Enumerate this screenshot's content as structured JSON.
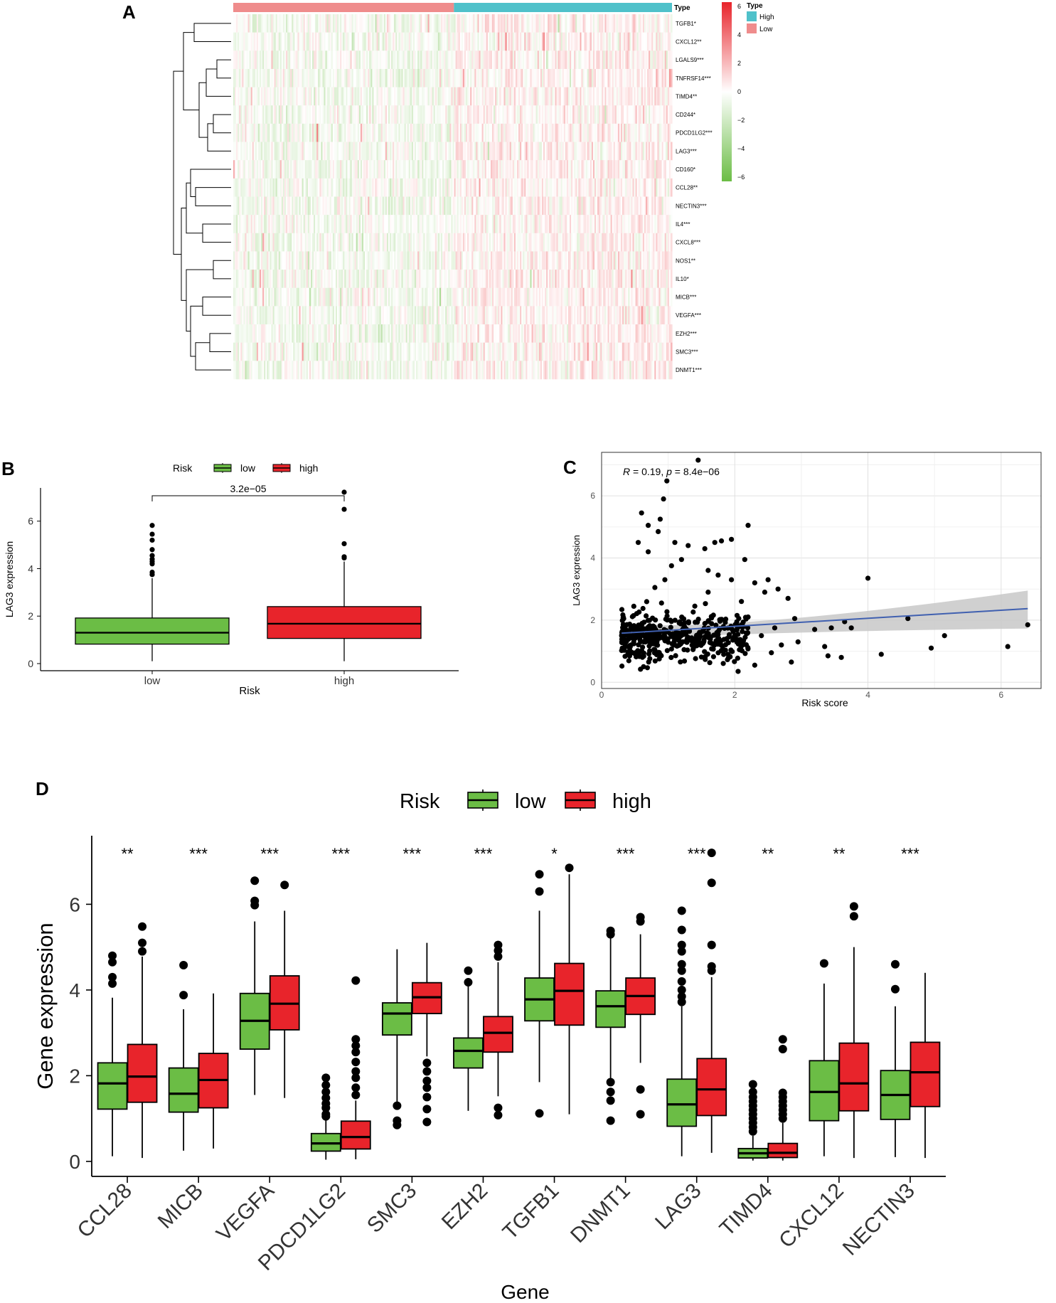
{
  "colors": {
    "low": "#6bbd45",
    "high": "#e8242b",
    "heat_pos": "#e8242b",
    "heat_neg": "#6bbd45",
    "type_high": "#4fc1ca",
    "type_low": "#ef8c8c",
    "fit": "#4060b0",
    "band": "#c8c8c8"
  },
  "chart_data": [
    {
      "panel": "A",
      "type": "heatmap",
      "title": "",
      "genes": [
        "TGFB1*",
        "CXCL12**",
        "LGALS9***",
        "TNFRSF14***",
        "TIMD4**",
        "CD244*",
        "PDCD1LG2***",
        "LAG3***",
        "CD160*",
        "CCL28**",
        "NECTIN3***",
        "IL4***",
        "CXCL8***",
        "NOS1**",
        "IL10*",
        "MICB***",
        "VEGFA***",
        "EZH2***",
        "SMC3***",
        "DNMT1***"
      ],
      "groups": [
        {
          "name": "Low",
          "fraction": 0.503
        },
        {
          "name": "High",
          "fraction": 0.497
        }
      ],
      "n_samples": 300,
      "legend": {
        "scale_title": "",
        "scale_ticks": [
          6,
          4,
          2,
          0,
          -2,
          -4,
          -6
        ],
        "type_title": "Type",
        "type_items": [
          {
            "label": "High",
            "color": "#4fc1ca"
          },
          {
            "label": "Low",
            "color": "#ef8c8c"
          }
        ]
      }
    },
    {
      "panel": "B",
      "type": "box",
      "legend_title": "Risk",
      "legend_items": [
        "low",
        "high"
      ],
      "categories": [
        "low",
        "high"
      ],
      "xlabel": "Risk",
      "ylabel": "LAG3 expression",
      "ylim": [
        -0.3,
        7.4
      ],
      "yticks": [
        0,
        2,
        4,
        6
      ],
      "pvalue": "3.2e−05",
      "boxes": [
        {
          "name": "low",
          "min": 0.1,
          "q1": 0.82,
          "median": 1.3,
          "q3": 1.92,
          "max": 3.6,
          "outliers": [
            3.75,
            3.85,
            4.2,
            4.3,
            4.4,
            4.55,
            4.8,
            5.2,
            5.45,
            5.82
          ]
        },
        {
          "name": "high",
          "min": 0.1,
          "q1": 1.06,
          "median": 1.68,
          "q3": 2.4,
          "max": 4.3,
          "outliers": [
            4.45,
            4.5,
            5.05,
            6.5,
            7.22
          ]
        }
      ]
    },
    {
      "panel": "C",
      "type": "scatter",
      "annotation_parts": [
        "R",
        " = 0.19, ",
        "p",
        " = 8.4e−06"
      ],
      "xlabel": "Risk score",
      "ylabel": "LAG3 expression",
      "xlim": [
        0,
        6.6
      ],
      "ylim": [
        -0.2,
        7.4
      ],
      "xticks": [
        0,
        2,
        4,
        6
      ],
      "yticks": [
        0,
        2,
        4,
        6
      ],
      "fit": {
        "x0": 0.3,
        "y0": 1.58,
        "x1": 6.4,
        "y1": 2.37
      },
      "band": {
        "upper_left": 1.85,
        "lower_left": 1.38,
        "upper_right": 2.95,
        "lower_right": 1.73
      },
      "points": [
        [
          1.45,
          7.15
        ],
        [
          0.98,
          6.48
        ],
        [
          0.93,
          5.9
        ],
        [
          0.6,
          5.45
        ],
        [
          0.88,
          5.25
        ],
        [
          0.7,
          5.05
        ],
        [
          2.2,
          5.05
        ],
        [
          0.85,
          4.85
        ],
        [
          1.95,
          4.6
        ],
        [
          1.7,
          4.5
        ],
        [
          1.8,
          4.55
        ],
        [
          1.3,
          4.4
        ],
        [
          1.1,
          4.5
        ],
        [
          1.55,
          4.3
        ],
        [
          0.55,
          4.5
        ],
        [
          0.7,
          4.2
        ],
        [
          4.0,
          3.35
        ],
        [
          2.5,
          3.3
        ],
        [
          1.6,
          3.6
        ],
        [
          1.75,
          3.45
        ],
        [
          2.3,
          3.2
        ],
        [
          2.45,
          2.9
        ],
        [
          2.65,
          3.0
        ],
        [
          2.8,
          2.7
        ],
        [
          2.9,
          2.05
        ],
        [
          2.2,
          2.1
        ],
        [
          2.6,
          1.75
        ],
        [
          3.2,
          1.7
        ],
        [
          3.45,
          1.75
        ],
        [
          3.65,
          1.95
        ],
        [
          3.75,
          1.75
        ],
        [
          3.35,
          1.15
        ],
        [
          3.4,
          0.85
        ],
        [
          3.6,
          0.8
        ],
        [
          4.2,
          0.9
        ],
        [
          4.6,
          2.05
        ],
        [
          4.95,
          1.1
        ],
        [
          5.15,
          1.5
        ],
        [
          6.1,
          1.15
        ],
        [
          6.4,
          1.85
        ],
        [
          2.05,
          0.35
        ],
        [
          2.3,
          0.55
        ],
        [
          2.55,
          0.95
        ],
        [
          2.85,
          0.65
        ],
        [
          2.7,
          1.2
        ],
        [
          2.4,
          1.5
        ],
        [
          2.95,
          1.3
        ],
        [
          1.9,
          0.9
        ],
        [
          2.0,
          1.5
        ],
        [
          2.1,
          2.6
        ],
        [
          1.95,
          3.3
        ],
        [
          2.15,
          3.95
        ],
        [
          1.2,
          3.95
        ],
        [
          1.05,
          3.75
        ],
        [
          0.95,
          3.3
        ],
        [
          0.8,
          3.05
        ],
        [
          0.9,
          2.55
        ],
        [
          1.4,
          2.45
        ],
        [
          1.6,
          2.9
        ]
      ],
      "cloud": {
        "seed": 7,
        "count": 440,
        "x_min": 0.3,
        "x_max": 2.2,
        "y_min": 0.05,
        "y_max": 3.4
      }
    },
    {
      "panel": "D",
      "type": "box",
      "legend_title": "Risk",
      "legend_items": [
        "low",
        "high"
      ],
      "xlabel": "Gene",
      "ylabel": "Gene expression",
      "ylim": [
        -0.35,
        7.6
      ],
      "yticks": [
        0,
        2,
        4,
        6
      ],
      "categories": [
        "CCL28",
        "MICB",
        "VEGFA",
        "PDCD1LG2",
        "SMC3",
        "EZH2",
        "TGFB1",
        "DNMT1",
        "LAG3",
        "TIMD4",
        "CXCL12",
        "NECTIN3"
      ],
      "significance": [
        "**",
        "***",
        "***",
        "***",
        "***",
        "***",
        "*",
        "***",
        "***",
        "**",
        "**",
        "***"
      ],
      "series": [
        {
          "name": "low",
          "boxes": [
            {
              "min": 0.12,
              "q1": 1.22,
              "median": 1.82,
              "q3": 2.3,
              "max": 3.82,
              "outliers": [
                4.15,
                4.3,
                4.65,
                4.8
              ]
            },
            {
              "min": 0.25,
              "q1": 1.15,
              "median": 1.58,
              "q3": 2.18,
              "max": 3.55,
              "outliers": [
                3.88,
                4.58
              ]
            },
            {
              "min": 1.55,
              "q1": 2.62,
              "median": 3.28,
              "q3": 3.92,
              "max": 5.6,
              "outliers": [
                5.98,
                6.08,
                6.55
              ]
            },
            {
              "min": 0.04,
              "q1": 0.24,
              "median": 0.42,
              "q3": 0.65,
              "max": 0.98,
              "outliers": [
                1.05,
                1.1,
                1.25,
                1.35,
                1.48,
                1.62,
                1.78,
                1.95
              ]
            },
            {
              "min": 1.35,
              "q1": 2.95,
              "median": 3.45,
              "q3": 3.7,
              "max": 4.95,
              "outliers": [
                0.85,
                0.95,
                1.3
              ]
            },
            {
              "min": 1.18,
              "q1": 2.18,
              "median": 2.58,
              "q3": 2.88,
              "max": 4.1,
              "outliers": [
                4.18,
                4.45
              ]
            },
            {
              "min": 1.85,
              "q1": 3.28,
              "median": 3.78,
              "q3": 4.28,
              "max": 5.85,
              "outliers": [
                1.12,
                6.3,
                6.7
              ]
            },
            {
              "min": 1.85,
              "q1": 3.13,
              "median": 3.62,
              "q3": 3.98,
              "max": 5.25,
              "outliers": [
                0.95,
                1.42,
                1.62,
                1.85,
                5.3,
                5.38
              ]
            },
            {
              "min": 0.12,
              "q1": 0.82,
              "median": 1.33,
              "q3": 1.92,
              "max": 3.62,
              "outliers": [
                3.72,
                3.85,
                4.0,
                4.2,
                4.45,
                4.6,
                4.9,
                5.05,
                5.4,
                5.85
              ]
            },
            {
              "min": 0.02,
              "q1": 0.08,
              "median": 0.19,
              "q3": 0.3,
              "max": 0.6,
              "outliers": [
                0.7,
                0.8,
                0.9,
                1.0,
                1.1,
                1.2,
                1.3,
                1.4,
                1.5,
                1.62,
                1.8
              ]
            },
            {
              "min": 0.12,
              "q1": 0.95,
              "median": 1.62,
              "q3": 2.35,
              "max": 4.15,
              "outliers": [
                4.62
              ]
            },
            {
              "min": 0.1,
              "q1": 0.98,
              "median": 1.55,
              "q3": 2.12,
              "max": 3.62,
              "outliers": [
                4.02,
                4.6
              ]
            }
          ]
        },
        {
          "name": "high",
          "boxes": [
            {
              "min": 0.08,
              "q1": 1.38,
              "median": 1.98,
              "q3": 2.73,
              "max": 4.78,
              "outliers": [
                4.9,
                5.1,
                5.48
              ]
            },
            {
              "min": 0.3,
              "q1": 1.25,
              "median": 1.9,
              "q3": 2.52,
              "max": 3.92,
              "outliers": []
            },
            {
              "min": 1.48,
              "q1": 3.07,
              "median": 3.68,
              "q3": 4.33,
              "max": 5.85,
              "outliers": [
                6.45
              ]
            },
            {
              "min": 0.05,
              "q1": 0.29,
              "median": 0.57,
              "q3": 0.94,
              "max": 1.42,
              "outliers": [
                1.55,
                1.72,
                1.95,
                2.1,
                2.32,
                2.55,
                2.7,
                2.85,
                4.22
              ]
            },
            {
              "min": 2.45,
              "q1": 3.45,
              "median": 3.83,
              "q3": 4.17,
              "max": 5.1,
              "outliers": [
                0.92,
                1.22,
                1.5,
                1.72,
                1.88,
                2.1,
                2.3
              ]
            },
            {
              "min": 1.52,
              "q1": 2.55,
              "median": 3.0,
              "q3": 3.38,
              "max": 4.65,
              "outliers": [
                1.08,
                1.25,
                4.78,
                4.92,
                5.05
              ]
            },
            {
              "min": 1.1,
              "q1": 3.18,
              "median": 3.98,
              "q3": 4.62,
              "max": 6.7,
              "outliers": [
                6.85
              ]
            },
            {
              "min": 2.3,
              "q1": 3.43,
              "median": 3.86,
              "q3": 4.28,
              "max": 5.3,
              "outliers": [
                1.1,
                1.68,
                5.6,
                5.7
              ]
            },
            {
              "min": 0.2,
              "q1": 1.07,
              "median": 1.68,
              "q3": 2.4,
              "max": 4.3,
              "outliers": [
                4.45,
                4.55,
                5.05,
                6.5,
                7.2
              ]
            },
            {
              "min": 0.02,
              "q1": 0.09,
              "median": 0.2,
              "q3": 0.42,
              "max": 0.9,
              "outliers": [
                1.0,
                1.1,
                1.2,
                1.3,
                1.4,
                1.5,
                1.6,
                2.62,
                2.85
              ]
            },
            {
              "min": 0.08,
              "q1": 1.18,
              "median": 1.82,
              "q3": 2.76,
              "max": 5.0,
              "outliers": [
                5.72,
                5.95
              ]
            },
            {
              "min": 0.08,
              "q1": 1.28,
              "median": 2.08,
              "q3": 2.78,
              "max": 4.4,
              "outliers": []
            }
          ]
        }
      ]
    }
  ]
}
